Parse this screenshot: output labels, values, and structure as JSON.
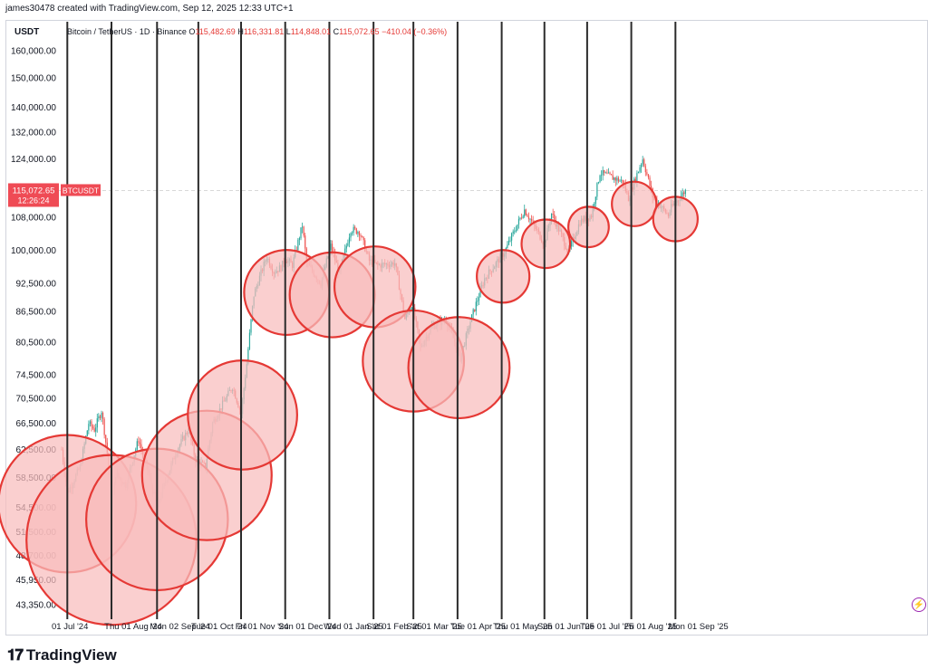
{
  "header": {
    "credit": "james30478 created with TradingView.com, Sep 12, 2025 12:33 UTC+1",
    "currency": "USDT"
  },
  "legend": {
    "symbol": "Bitcoin / TetherUS · 1D · Binance",
    "o_label": "O",
    "o_value": "115,482.69",
    "h_label": "H",
    "h_value": "116,331.81",
    "l_label": "L",
    "l_value": "114,848.01",
    "c_label": "C",
    "c_value": "115,072.65",
    "change": "−410.04 (−0.36%)"
  },
  "price_tag": {
    "price": "115,072.65",
    "countdown": "12:26:24",
    "ticker": "BTCUSDT"
  },
  "brand": "TradingView",
  "colors": {
    "up": "#26a69a",
    "down": "#ef5350",
    "circle_stroke": "#e53935",
    "circle_fill": "#f8bcbc",
    "vline": "#2b2b2b",
    "price_tag": "#ef4b55"
  },
  "chart_data": {
    "type": "candlestick",
    "y_axis_ticks": [
      160000,
      150000,
      140000,
      132000,
      124000,
      108000,
      100000,
      92500,
      86500,
      80500,
      74500,
      70500,
      66500,
      62500,
      58500,
      54500,
      51500,
      48700,
      45950,
      43350
    ],
    "y_axis_labels": [
      "160,000.00",
      "150,000.00",
      "140,000.00",
      "132,000.00",
      "124,000.00",
      "108,000.00",
      "100,000.00",
      "92,500.00",
      "86,500.00",
      "80,500.00",
      "74,500.00",
      "70,500.00",
      "66,500.00",
      "62,500.00",
      "58,500.00",
      "54,500.00",
      "51,500.00",
      "48,700.00",
      "45,950.00",
      "43,350.00"
    ],
    "scale": "log",
    "x_axis_labels": [
      "01 Jul '24",
      "Thu 01 Aug '24",
      "Mon 02 Sep '24",
      "Tue 01 Oct '24",
      "Fri 01 Nov '24",
      "Sun 01 Dec '24",
      "Wed 01 Jan '25",
      "Sat 01 Feb '25",
      "Sat 01 Mar '25",
      "Tue 01 Apr '25",
      "Thu 01 May '25",
      "Sun 01 Jun '25",
      "Tue 01 Jul '25",
      "Fri 01 Aug '25",
      "Mon 01 Sep '25"
    ],
    "vertical_lines": [
      "2024-07-05",
      "2024-08-05",
      "2024-09-06",
      "2024-10-05",
      "2024-11-04",
      "2024-12-05",
      "2025-01-05",
      "2025-02-05",
      "2025-03-05",
      "2025-04-05",
      "2025-05-06",
      "2025-06-05",
      "2025-07-05",
      "2025-08-05",
      "2025-09-05"
    ],
    "price_path": [
      [
        "2024-07-01",
        62500
      ],
      [
        "2024-07-05",
        56500
      ],
      [
        "2024-07-08",
        57500
      ],
      [
        "2024-07-14",
        60000
      ],
      [
        "2024-07-20",
        66500
      ],
      [
        "2024-07-24",
        65500
      ],
      [
        "2024-07-29",
        68500
      ],
      [
        "2024-08-02",
        62000
      ],
      [
        "2024-08-05",
        54500
      ],
      [
        "2024-08-08",
        59000
      ],
      [
        "2024-08-15",
        57500
      ],
      [
        "2024-08-24",
        64000
      ],
      [
        "2024-08-31",
        59000
      ],
      [
        "2024-09-06",
        54500
      ],
      [
        "2024-09-12",
        58000
      ],
      [
        "2024-09-20",
        62500
      ],
      [
        "2024-09-28",
        65500
      ],
      [
        "2024-10-03",
        61000
      ],
      [
        "2024-10-10",
        60000
      ],
      [
        "2024-10-15",
        66500
      ],
      [
        "2024-10-29",
        72500
      ],
      [
        "2024-11-04",
        68000
      ],
      [
        "2024-11-08",
        76500
      ],
      [
        "2024-11-13",
        90000
      ],
      [
        "2024-11-22",
        98500
      ],
      [
        "2024-11-27",
        95000
      ],
      [
        "2024-12-02",
        96000
      ],
      [
        "2024-12-05",
        98000
      ],
      [
        "2024-12-10",
        96500
      ],
      [
        "2024-12-17",
        106000
      ],
      [
        "2024-12-20",
        97000
      ],
      [
        "2024-12-30",
        92500
      ],
      [
        "2025-01-06",
        101000
      ],
      [
        "2025-01-12",
        94500
      ],
      [
        "2025-01-20",
        105000
      ],
      [
        "2025-01-26",
        104500
      ],
      [
        "2025-02-02",
        97500
      ],
      [
        "2025-02-08",
        96500
      ],
      [
        "2025-02-20",
        97000
      ],
      [
        "2025-02-27",
        85000
      ],
      [
        "2025-03-04",
        88000
      ],
      [
        "2025-03-10",
        79500
      ],
      [
        "2025-03-18",
        83500
      ],
      [
        "2025-03-28",
        85000
      ],
      [
        "2025-04-07",
        77500
      ],
      [
        "2025-04-14",
        84500
      ],
      [
        "2025-04-24",
        93500
      ],
      [
        "2025-05-08",
        99500
      ],
      [
        "2025-05-22",
        110000
      ],
      [
        "2025-06-05",
        101500
      ],
      [
        "2025-06-10",
        109000
      ],
      [
        "2025-06-22",
        99500
      ],
      [
        "2025-06-30",
        107000
      ],
      [
        "2025-07-08",
        108500
      ],
      [
        "2025-07-14",
        120000
      ],
      [
        "2025-07-30",
        117500
      ],
      [
        "2025-08-03",
        113000
      ],
      [
        "2025-08-13",
        124000
      ],
      [
        "2025-08-20",
        113500
      ],
      [
        "2025-08-31",
        108500
      ],
      [
        "2025-09-02",
        110500
      ],
      [
        "2025-09-12",
        115072
      ]
    ],
    "circled_lows": [
      {
        "date": "2024-07-05",
        "price": 55000,
        "r": 1.7
      },
      {
        "date": "2024-08-05",
        "price": 50500,
        "r": 2.1
      },
      {
        "date": "2024-09-06",
        "price": 53000,
        "r": 1.75
      },
      {
        "date": "2024-10-11",
        "price": 58800,
        "r": 1.6
      },
      {
        "date": "2024-11-05",
        "price": 67800,
        "r": 1.35
      },
      {
        "date": "2024-12-06",
        "price": 90500,
        "r": 1.05
      },
      {
        "date": "2025-01-07",
        "price": 90000,
        "r": 1.05
      },
      {
        "date": "2025-02-06",
        "price": 91700,
        "r": 1.0
      },
      {
        "date": "2025-03-05",
        "price": 77000,
        "r": 1.25
      },
      {
        "date": "2025-04-06",
        "price": 75800,
        "r": 1.25
      },
      {
        "date": "2025-05-07",
        "price": 94000,
        "r": 0.65
      },
      {
        "date": "2025-06-06",
        "price": 101500,
        "r": 0.6
      },
      {
        "date": "2025-07-06",
        "price": 105600,
        "r": 0.5
      },
      {
        "date": "2025-08-07",
        "price": 111500,
        "r": 0.55
      },
      {
        "date": "2025-09-05",
        "price": 107600,
        "r": 0.55
      }
    ],
    "last_price": 115072.65,
    "grid": false
  }
}
